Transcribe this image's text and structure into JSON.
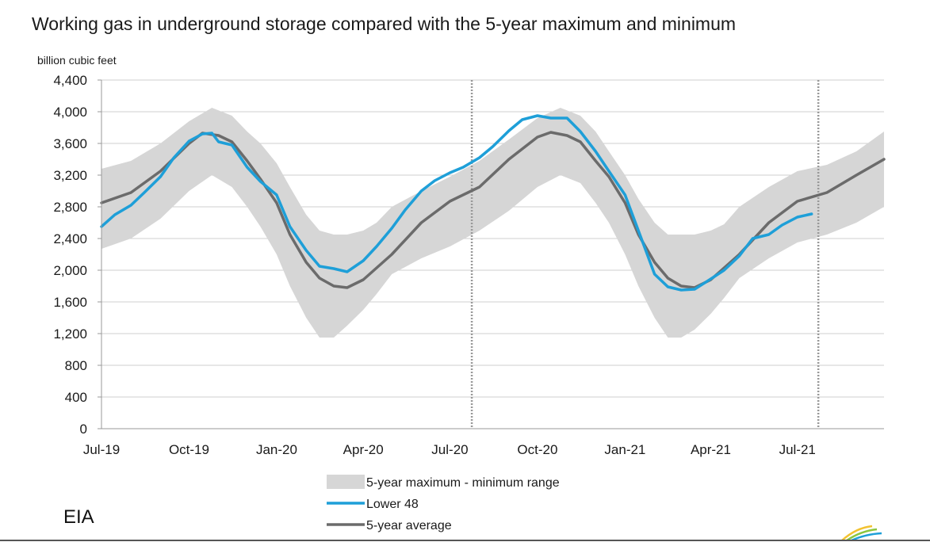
{
  "chart_data": {
    "type": "line",
    "title": "Working gas in underground  storage compared with the 5-year maximum  and minimum",
    "ylabel": "billion cubic feet",
    "xlabel": "",
    "ylim": [
      0,
      4400
    ],
    "yticks": [
      0,
      400,
      800,
      1200,
      1600,
      2000,
      2400,
      2800,
      3200,
      3600,
      4000,
      4400
    ],
    "ytick_labels": [
      "0",
      "400",
      "800",
      "1,200",
      "1,600",
      "2,000",
      "2,400",
      "2,800",
      "3,200",
      "3,600",
      "4,000",
      "4,400"
    ],
    "xlim": [
      "2019-07-01",
      "2021-09-30"
    ],
    "xticks": [
      {
        "date": "2019-07-01",
        "label": "Jul-19"
      },
      {
        "date": "2019-10-01",
        "label": "Oct-19"
      },
      {
        "date": "2020-01-01",
        "label": "Jan-20"
      },
      {
        "date": "2020-04-01",
        "label": "Apr-20"
      },
      {
        "date": "2020-07-01",
        "label": "Jul-20"
      },
      {
        "date": "2020-10-01",
        "label": "Oct-20"
      },
      {
        "date": "2021-01-01",
        "label": "Jan-21"
      },
      {
        "date": "2021-04-01",
        "label": "Apr-21"
      },
      {
        "date": "2021-07-01",
        "label": "Jul-21"
      }
    ],
    "grid": "horizontal",
    "legend_position": "bottom",
    "vertical_markers": [
      "2020-07-24",
      "2021-07-23"
    ],
    "range": {
      "name": "5-year maximum - minimum range",
      "color": "#d6d6d6",
      "x": [
        "2019-07-01",
        "2019-08-01",
        "2019-09-01",
        "2019-10-01",
        "2019-10-25",
        "2019-11-15",
        "2019-12-01",
        "2019-12-15",
        "2020-01-01",
        "2020-01-15",
        "2020-02-01",
        "2020-02-15",
        "2020-03-01",
        "2020-03-15",
        "2020-04-01",
        "2020-04-15",
        "2020-05-01",
        "2020-06-01",
        "2020-07-01",
        "2020-08-01",
        "2020-09-01",
        "2020-10-01",
        "2020-10-25",
        "2020-11-15",
        "2020-12-01",
        "2020-12-15",
        "2021-01-01",
        "2021-01-15",
        "2021-02-01",
        "2021-02-15",
        "2021-03-01",
        "2021-03-15",
        "2021-04-01",
        "2021-04-15",
        "2021-05-01",
        "2021-06-01",
        "2021-07-01",
        "2021-08-01",
        "2021-09-01",
        "2021-09-30"
      ],
      "max": [
        3280,
        3380,
        3600,
        3880,
        4050,
        3950,
        3750,
        3600,
        3350,
        3050,
        2700,
        2500,
        2450,
        2450,
        2500,
        2600,
        2800,
        3000,
        3180,
        3380,
        3650,
        3920,
        4050,
        3950,
        3750,
        3500,
        3200,
        2900,
        2600,
        2450,
        2450,
        2450,
        2500,
        2580,
        2800,
        3050,
        3250,
        3330,
        3500,
        3750
      ],
      "min": [
        2270,
        2400,
        2650,
        3000,
        3200,
        3050,
        2800,
        2550,
        2200,
        1800,
        1400,
        1150,
        1150,
        1300,
        1500,
        1700,
        1950,
        2150,
        2300,
        2500,
        2750,
        3050,
        3200,
        3100,
        2850,
        2600,
        2200,
        1800,
        1400,
        1150,
        1150,
        1250,
        1450,
        1650,
        1900,
        2150,
        2350,
        2450,
        2600,
        2800
      ]
    },
    "series": [
      {
        "name": "Lower 48",
        "color": "#1e9fd8",
        "x": [
          "2019-07-01",
          "2019-07-15",
          "2019-08-01",
          "2019-08-15",
          "2019-09-01",
          "2019-09-15",
          "2019-10-01",
          "2019-10-15",
          "2019-10-25",
          "2019-11-01",
          "2019-11-15",
          "2019-12-01",
          "2019-12-15",
          "2020-01-01",
          "2020-01-15",
          "2020-02-01",
          "2020-02-15",
          "2020-03-01",
          "2020-03-15",
          "2020-04-01",
          "2020-04-15",
          "2020-05-01",
          "2020-05-15",
          "2020-06-01",
          "2020-06-15",
          "2020-07-01",
          "2020-07-15",
          "2020-08-01",
          "2020-08-15",
          "2020-09-01",
          "2020-09-15",
          "2020-10-01",
          "2020-10-15",
          "2020-11-01",
          "2020-11-15",
          "2020-12-01",
          "2020-12-15",
          "2021-01-01",
          "2021-01-15",
          "2021-02-01",
          "2021-02-15",
          "2021-03-01",
          "2021-03-15",
          "2021-04-01",
          "2021-04-15",
          "2021-05-01",
          "2021-05-15",
          "2021-06-01",
          "2021-06-15",
          "2021-07-01",
          "2021-07-16"
        ],
        "values": [
          2550,
          2700,
          2820,
          2980,
          3180,
          3420,
          3630,
          3720,
          3730,
          3620,
          3580,
          3300,
          3120,
          2950,
          2550,
          2250,
          2050,
          2020,
          1980,
          2120,
          2300,
          2530,
          2760,
          3000,
          3130,
          3230,
          3300,
          3420,
          3560,
          3760,
          3900,
          3950,
          3920,
          3920,
          3750,
          3500,
          3250,
          2950,
          2500,
          1950,
          1790,
          1750,
          1760,
          1890,
          2000,
          2180,
          2400,
          2450,
          2570,
          2670,
          2710
        ]
      },
      {
        "name": "5-year average",
        "color": "#6b6b6b",
        "x": [
          "2019-07-01",
          "2019-08-01",
          "2019-09-01",
          "2019-10-01",
          "2019-10-15",
          "2019-11-01",
          "2019-11-15",
          "2019-12-01",
          "2019-12-15",
          "2020-01-01",
          "2020-01-15",
          "2020-02-01",
          "2020-02-15",
          "2020-03-01",
          "2020-03-15",
          "2020-04-01",
          "2020-05-01",
          "2020-06-01",
          "2020-07-01",
          "2020-08-01",
          "2020-09-01",
          "2020-10-01",
          "2020-10-15",
          "2020-11-01",
          "2020-11-15",
          "2020-12-01",
          "2020-12-15",
          "2021-01-01",
          "2021-01-15",
          "2021-02-01",
          "2021-02-15",
          "2021-03-01",
          "2021-03-15",
          "2021-04-01",
          "2021-05-01",
          "2021-06-01",
          "2021-07-01",
          "2021-08-01",
          "2021-09-01",
          "2021-09-30"
        ],
        "values": [
          2850,
          2980,
          3250,
          3600,
          3730,
          3700,
          3620,
          3380,
          3150,
          2850,
          2450,
          2100,
          1900,
          1800,
          1780,
          1880,
          2200,
          2600,
          2870,
          3050,
          3400,
          3680,
          3740,
          3700,
          3620,
          3380,
          3180,
          2850,
          2450,
          2100,
          1900,
          1800,
          1780,
          1880,
          2200,
          2600,
          2870,
          2980,
          3200,
          3400
        ]
      }
    ],
    "legend": [
      {
        "label": "5-year maximum - minimum range",
        "kind": "area",
        "color": "#d6d6d6"
      },
      {
        "label": "Lower 48",
        "kind": "line",
        "color": "#1e9fd8"
      },
      {
        "label": "5-year average",
        "kind": "line",
        "color": "#6b6b6b"
      }
    ]
  },
  "source": "EIA",
  "colors": {
    "grid": "#cfcfcf",
    "axis": "#999999",
    "marker": "#999999",
    "logo": [
      "#f2c230",
      "#8cc63f",
      "#1e9fd8"
    ]
  }
}
